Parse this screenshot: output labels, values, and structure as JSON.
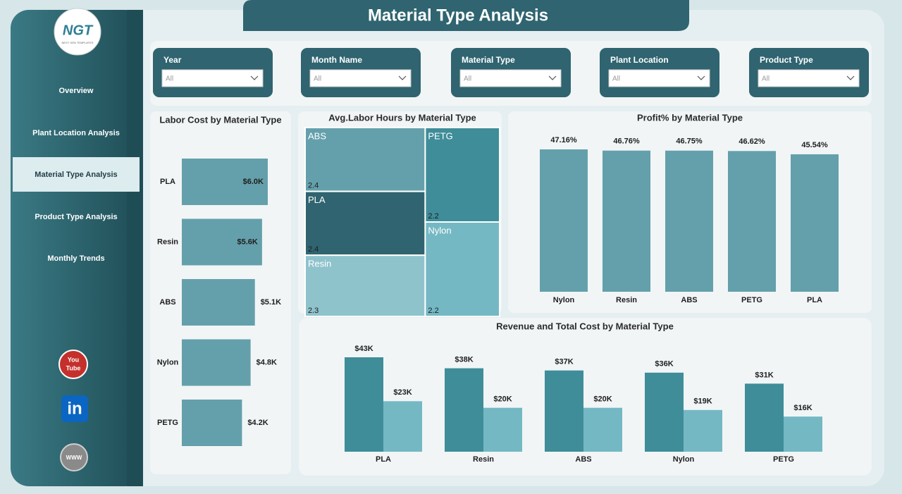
{
  "header": {
    "title": "Material Type Analysis",
    "logo": "NGT",
    "logo_subtitle": "NEXT GEN TEMPLATES"
  },
  "nav": [
    "Overview",
    "Plant Location Analysis",
    "Material Type Analysis",
    "Product Type Analysis",
    "Monthly Trends"
  ],
  "social": {
    "youtube_top": "You",
    "youtube_bottom": "Tube",
    "linkedin": "in",
    "web": "WWW"
  },
  "filters": [
    {
      "label": "Year",
      "value": "All"
    },
    {
      "label": "Month Name",
      "value": "All"
    },
    {
      "label": "Material Type",
      "value": "All"
    },
    {
      "label": "Plant Location",
      "value": "All"
    },
    {
      "label": "Product Type",
      "value": "All"
    }
  ],
  "chart_data": [
    {
      "type": "bar",
      "orientation": "horizontal",
      "title": "Labor Cost by Material Type",
      "categories": [
        "PLA",
        "Resin",
        "ABS",
        "Nylon",
        "PETG"
      ],
      "values": [
        6.0,
        5.6,
        5.1,
        4.8,
        4.2
      ],
      "value_labels": [
        "$6.0K",
        "$5.6K",
        "$5.1K",
        "$4.8K",
        "$4.2K"
      ],
      "color": "#64a0ab"
    },
    {
      "type": "treemap",
      "title": "Avg.Labor Hours by Material Type",
      "categories": [
        "ABS",
        "PLA",
        "Resin",
        "PETG",
        "Nylon"
      ],
      "values": [
        2.4,
        2.4,
        2.3,
        2.2,
        2.2
      ],
      "colors": [
        "#64a0ab",
        "#2f6470",
        "#8fc3cc",
        "#3f8d99",
        "#74b8c4"
      ]
    },
    {
      "type": "bar",
      "orientation": "vertical",
      "title": "Profit% by Material Type",
      "categories": [
        "Nylon",
        "Resin",
        "ABS",
        "PETG",
        "PLA"
      ],
      "values": [
        47.16,
        46.76,
        46.75,
        46.62,
        45.54
      ],
      "value_labels": [
        "47.16%",
        "46.76%",
        "46.75%",
        "46.62%",
        "45.54%"
      ],
      "color": "#64a0ab"
    },
    {
      "type": "grouped_bar",
      "title": "Revenue and Total Cost by Material Type",
      "categories": [
        "PLA",
        "Resin",
        "ABS",
        "Nylon",
        "PETG"
      ],
      "series": [
        {
          "color": "#3f8d99",
          "values": [
            43,
            38,
            37,
            36,
            31
          ],
          "value_labels": [
            "$43K",
            "$38K",
            "$37K",
            "$36K",
            "$31K"
          ]
        },
        {
          "color": "#74b8c4",
          "values": [
            23,
            20,
            20,
            19,
            16
          ],
          "value_labels": [
            "$23K",
            "$20K",
            "$20K",
            "$19K",
            "$16K"
          ]
        }
      ]
    }
  ]
}
